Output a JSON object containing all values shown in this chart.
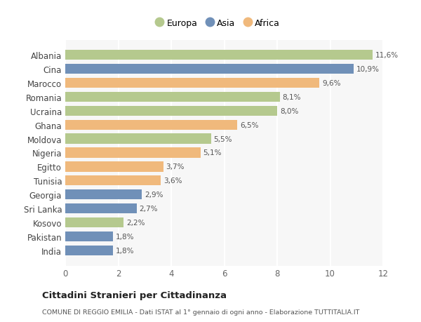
{
  "categories": [
    "Albania",
    "Cina",
    "Marocco",
    "Romania",
    "Ucraina",
    "Ghana",
    "Moldova",
    "Nigeria",
    "Egitto",
    "Tunisia",
    "Georgia",
    "Sri Lanka",
    "Kosovo",
    "Pakistan",
    "India"
  ],
  "values": [
    11.6,
    10.9,
    9.6,
    8.1,
    8.0,
    6.5,
    5.5,
    5.1,
    3.7,
    3.6,
    2.9,
    2.7,
    2.2,
    1.8,
    1.8
  ],
  "labels": [
    "11,6%",
    "10,9%",
    "9,6%",
    "8,1%",
    "8,0%",
    "6,5%",
    "5,5%",
    "5,1%",
    "3,7%",
    "3,6%",
    "2,9%",
    "2,7%",
    "2,2%",
    "1,8%",
    "1,8%"
  ],
  "continent": [
    "Europa",
    "Asia",
    "Africa",
    "Europa",
    "Europa",
    "Africa",
    "Europa",
    "Africa",
    "Africa",
    "Africa",
    "Asia",
    "Asia",
    "Europa",
    "Asia",
    "Asia"
  ],
  "colors": {
    "Europa": "#b5c98e",
    "Asia": "#7090b8",
    "Africa": "#f0b97c"
  },
  "background_color": "#ffffff",
  "plot_bg_color": "#f7f7f7",
  "title": "Cittadini Stranieri per Cittadinanza",
  "subtitle": "COMUNE DI REGGIO EMILIA - Dati ISTAT al 1° gennaio di ogni anno - Elaborazione TUTTITALIA.IT",
  "xlim": [
    0,
    12
  ],
  "xticks": [
    0,
    2,
    4,
    6,
    8,
    10,
    12
  ],
  "figsize": [
    6.0,
    4.6
  ],
  "dpi": 100
}
